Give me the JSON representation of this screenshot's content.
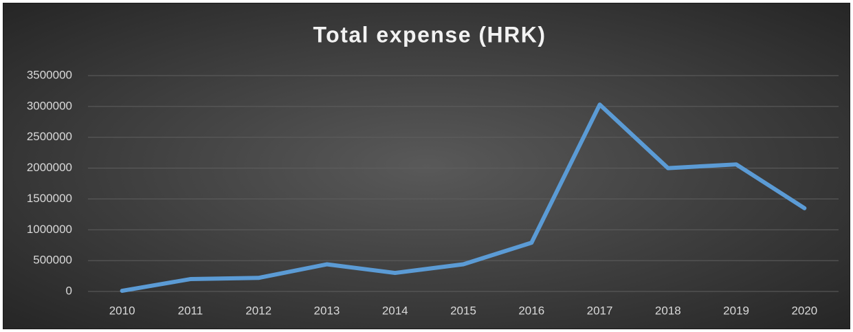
{
  "chart_data": {
    "type": "line",
    "title": "Total expense (HRK)",
    "categories": [
      "2010",
      "2011",
      "2012",
      "2013",
      "2014",
      "2015",
      "2016",
      "2017",
      "2018",
      "2019",
      "2020"
    ],
    "series": [
      {
        "name": "Total expense (HRK)",
        "color": "#5b9bd5",
        "values": [
          10000,
          200000,
          220000,
          440000,
          300000,
          440000,
          790000,
          3030000,
          2000000,
          2060000,
          1350000
        ]
      }
    ],
    "ylim": [
      0,
      3500000
    ],
    "yticks": [
      0,
      500000,
      1000000,
      1500000,
      2000000,
      2500000,
      3000000,
      3500000
    ],
    "grid": true
  }
}
